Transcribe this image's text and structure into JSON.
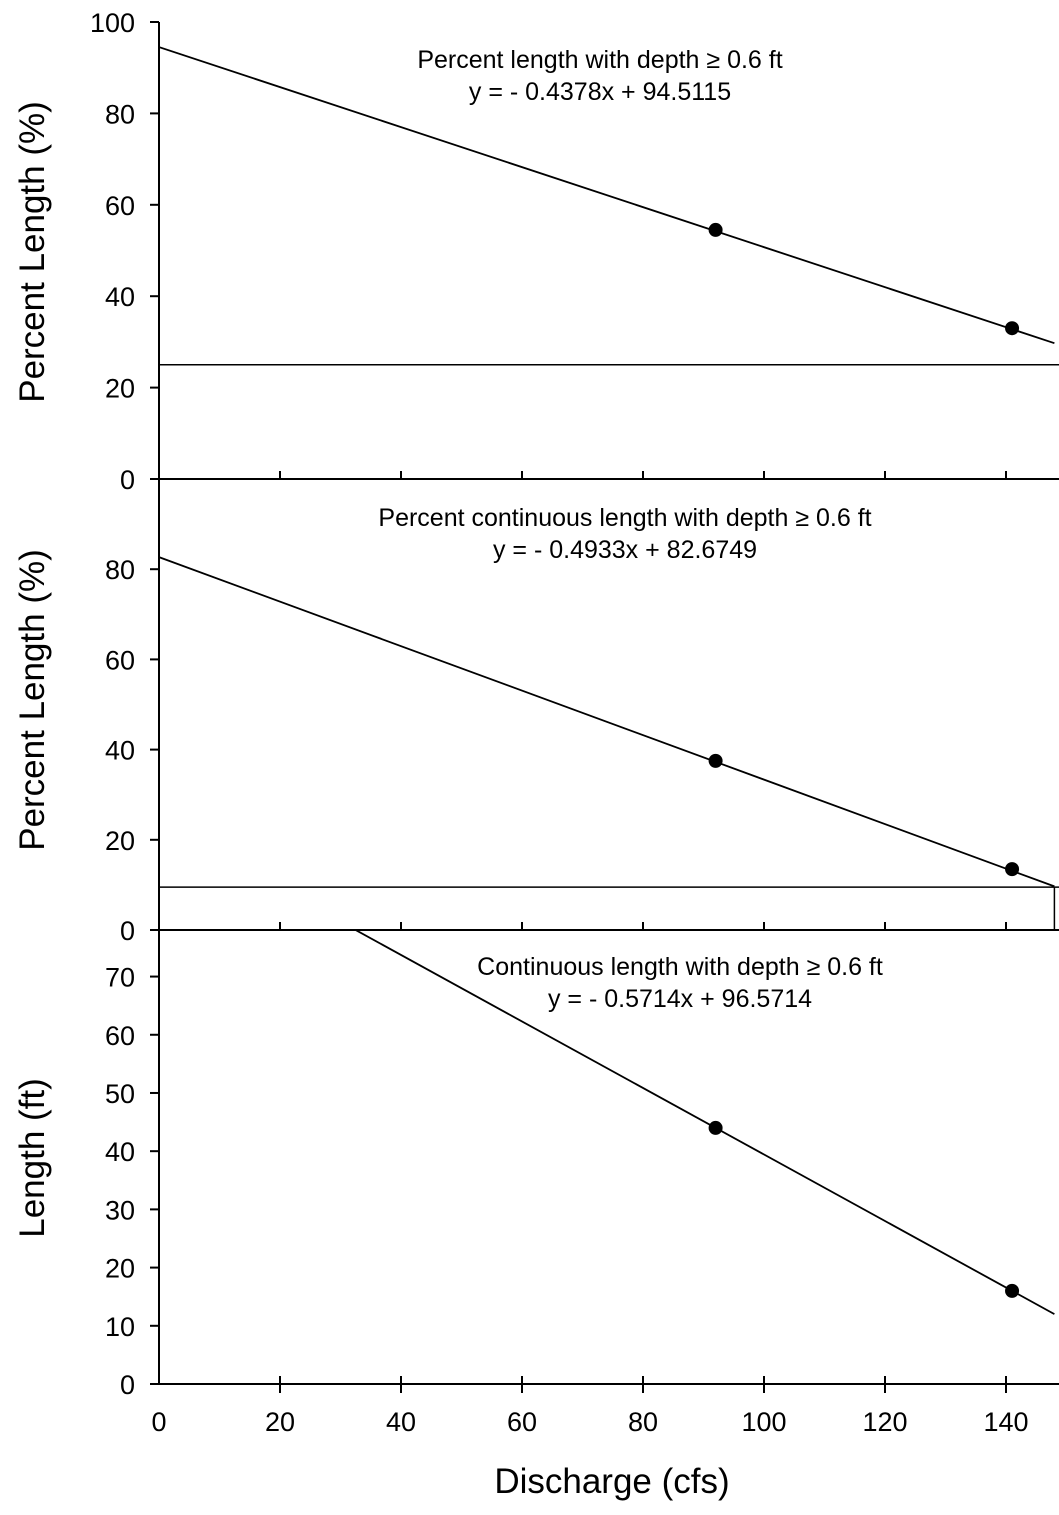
{
  "chart_data": [
    {
      "type": "scatter",
      "ylabel": "Percent Length (%)",
      "ylim": [
        0,
        100
      ],
      "yticks": [
        0,
        20,
        40,
        60,
        80,
        100
      ],
      "xlim": [
        0,
        148
      ],
      "annotations": [
        "Percent length with depth ≥ 0.6 ft",
        "y = - 0.4378x + 94.5115"
      ],
      "fit": {
        "slope": -0.4378,
        "intercept": 94.5115
      },
      "reference_y": 25,
      "series": [
        {
          "x": [
            92,
            141
          ],
          "y": [
            54.5,
            33
          ]
        }
      ]
    },
    {
      "type": "scatter",
      "ylabel": "Percent Length (%)",
      "ylim": [
        0,
        100
      ],
      "yticks": [
        0,
        20,
        40,
        60,
        80
      ],
      "xlim": [
        0,
        148
      ],
      "annotations": [
        "Percent continuous length with depth ≥ 0.6 ft",
        "y = - 0.4933x + 82.6749"
      ],
      "fit": {
        "slope": -0.4933,
        "intercept": 82.6749
      },
      "reference_y": 9.5,
      "reference_x": 148,
      "series": [
        {
          "x": [
            92,
            141
          ],
          "y": [
            37.5,
            13.5
          ]
        }
      ]
    },
    {
      "type": "scatter",
      "ylabel": "Length (ft)",
      "xlabel": "Discharge (cfs)",
      "ylim": [
        0,
        78
      ],
      "yticks": [
        0,
        10,
        20,
        30,
        40,
        50,
        60,
        70
      ],
      "xlim": [
        0,
        148
      ],
      "xticks": [
        0,
        20,
        40,
        60,
        80,
        100,
        120,
        140
      ],
      "annotations": [
        "Continuous length with depth ≥ 0.6 ft",
        "y = - 0.5714x + 96.5714"
      ],
      "fit": {
        "slope": -0.5714,
        "intercept": 96.5714
      },
      "series": [
        {
          "x": [
            92,
            141
          ],
          "y": [
            44,
            16
          ]
        }
      ]
    }
  ]
}
